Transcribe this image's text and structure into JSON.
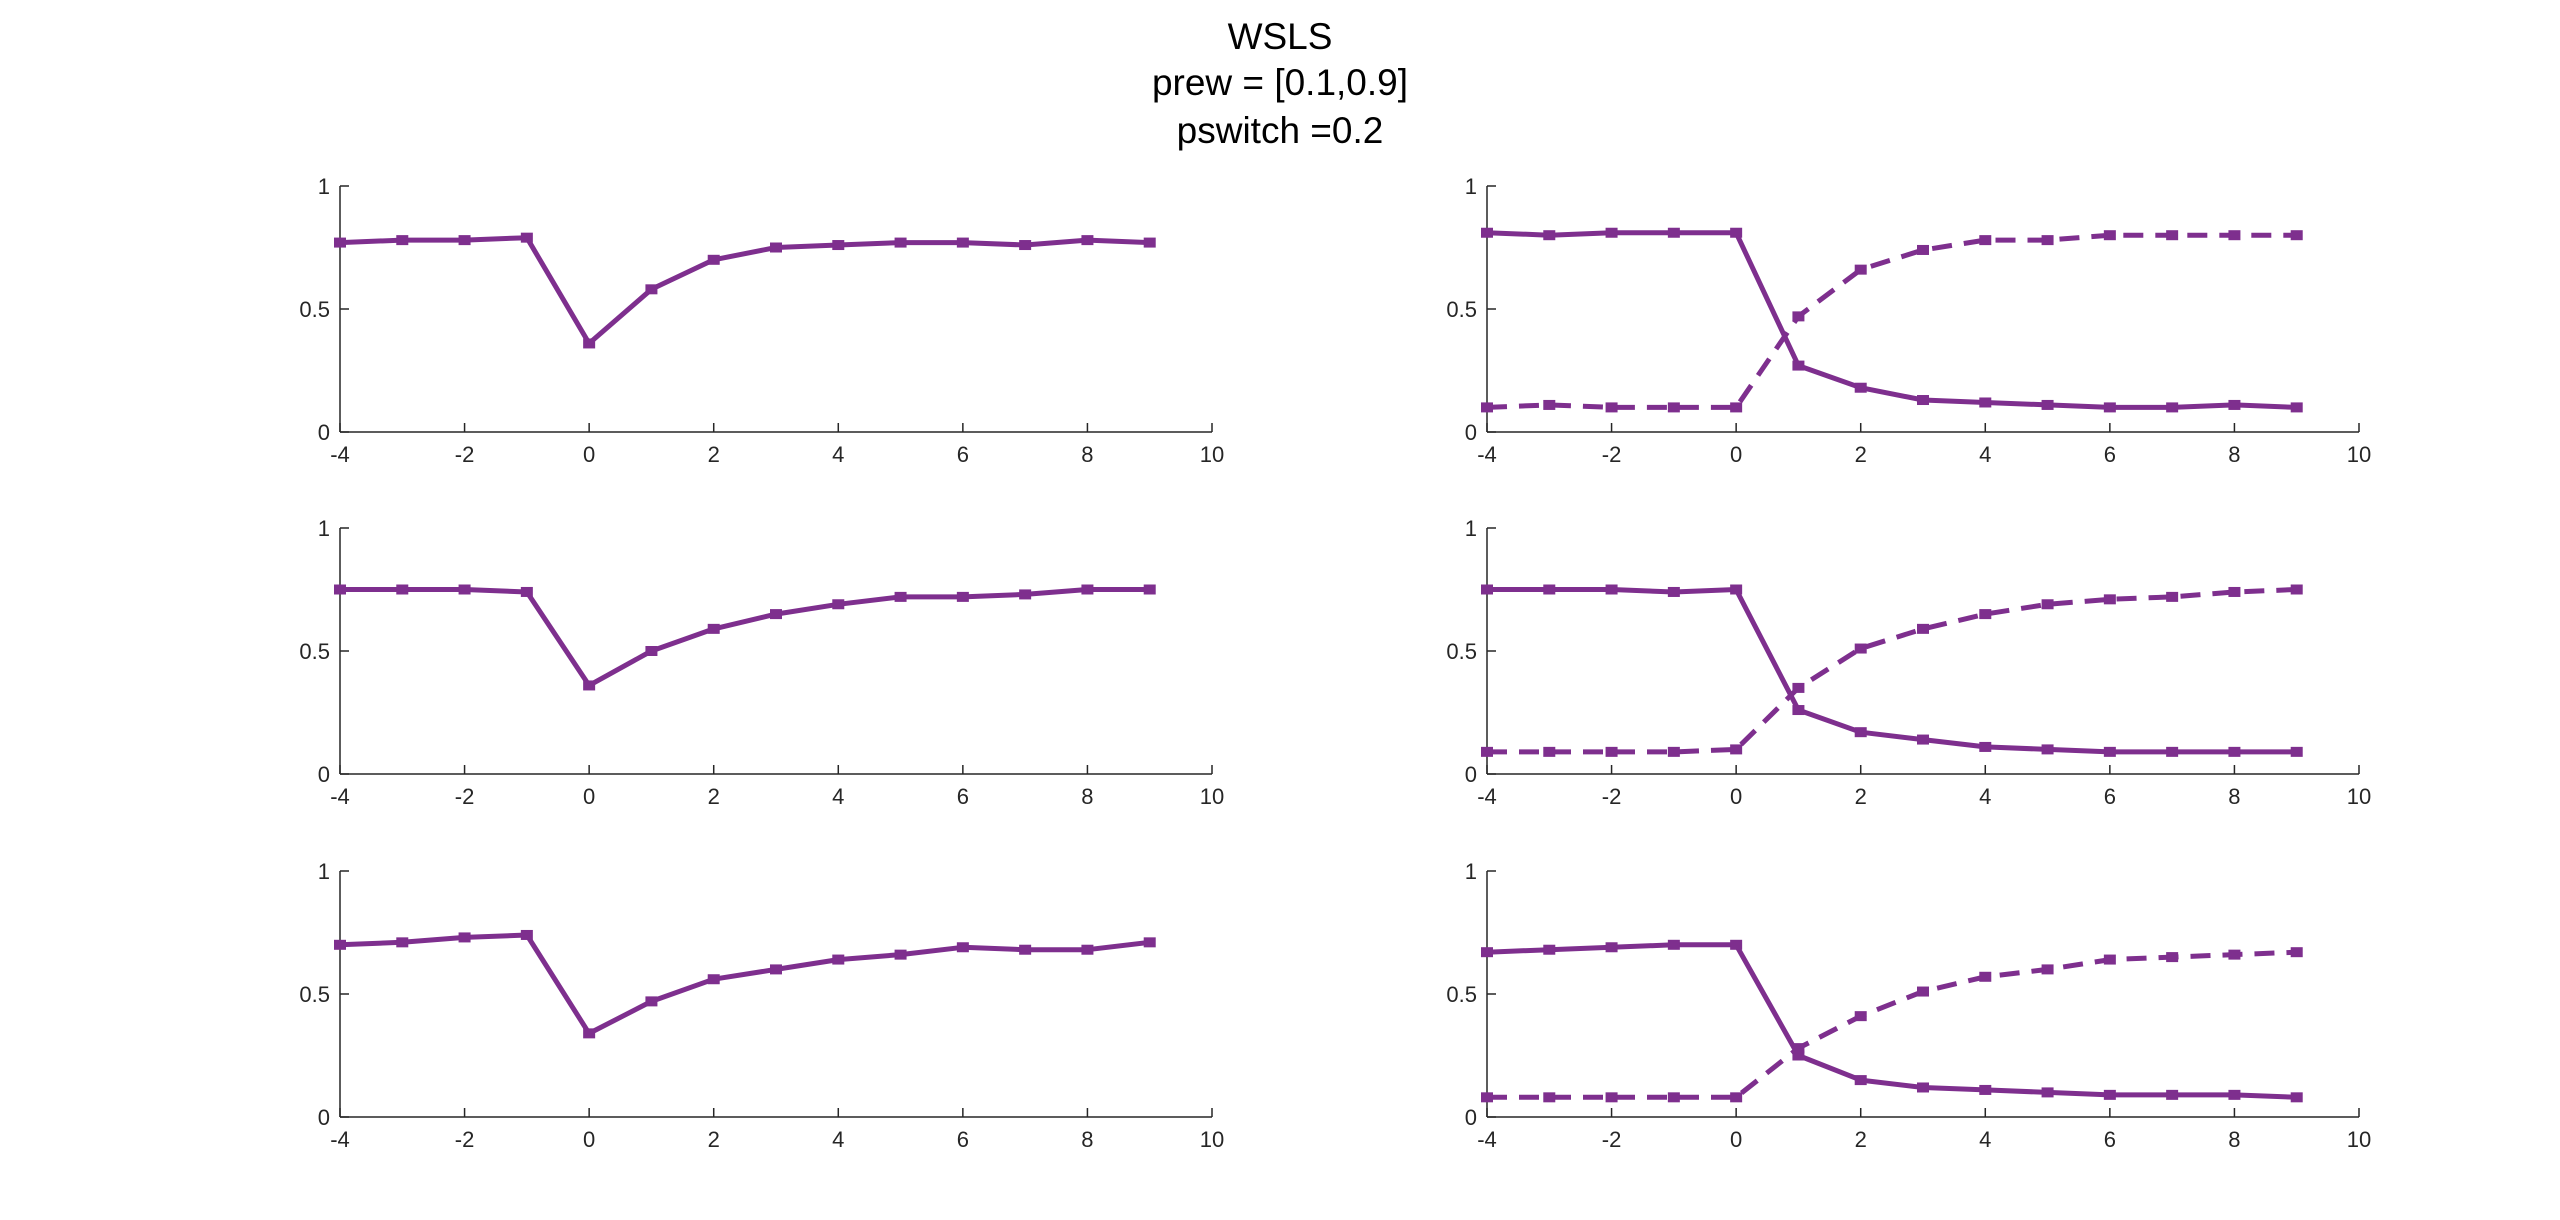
{
  "title": {
    "line1": "WSLS",
    "line2": "prew = [0.1,0.9]",
    "line3": "pswitch =0.2"
  },
  "colors": {
    "series": "#7E2F8E",
    "axis": "#262626"
  },
  "chart_data": [
    {
      "type": "line",
      "position": "row1-left",
      "xlim": [
        -4,
        10
      ],
      "ylim": [
        0,
        1
      ],
      "xticks": [
        "-4",
        "-2",
        "0",
        "2",
        "4",
        "6",
        "8",
        "10"
      ],
      "yticks": [
        "0",
        "0.5",
        "1"
      ],
      "x": [
        -4,
        -3,
        -2,
        -1,
        0,
        1,
        2,
        3,
        4,
        5,
        6,
        7,
        8,
        9
      ],
      "series": [
        {
          "style": "solid",
          "values": [
            0.77,
            0.78,
            0.78,
            0.79,
            0.36,
            0.58,
            0.7,
            0.75,
            0.76,
            0.77,
            0.77,
            0.76,
            0.78,
            0.77
          ]
        }
      ]
    },
    {
      "type": "line",
      "position": "row1-right",
      "xlim": [
        -4,
        10
      ],
      "ylim": [
        0,
        1
      ],
      "xticks": [
        "-4",
        "-2",
        "0",
        "2",
        "4",
        "6",
        "8",
        "10"
      ],
      "yticks": [
        "0",
        "0.5",
        "1"
      ],
      "x": [
        -4,
        -3,
        -2,
        -1,
        0,
        1,
        2,
        3,
        4,
        5,
        6,
        7,
        8,
        9
      ],
      "series": [
        {
          "style": "solid",
          "values": [
            0.81,
            0.8,
            0.81,
            0.81,
            0.81,
            0.27,
            0.18,
            0.13,
            0.12,
            0.11,
            0.1,
            0.1,
            0.11,
            0.1
          ]
        },
        {
          "style": "dashed",
          "values": [
            0.1,
            0.11,
            0.1,
            0.1,
            0.1,
            0.47,
            0.66,
            0.74,
            0.78,
            0.78,
            0.8,
            0.8,
            0.8,
            0.8
          ]
        }
      ]
    },
    {
      "type": "line",
      "position": "row2-left",
      "xlim": [
        -4,
        10
      ],
      "ylim": [
        0,
        1
      ],
      "xticks": [
        "-4",
        "-2",
        "0",
        "2",
        "4",
        "6",
        "8",
        "10"
      ],
      "yticks": [
        "0",
        "0.5",
        "1"
      ],
      "x": [
        -4,
        -3,
        -2,
        -1,
        0,
        1,
        2,
        3,
        4,
        5,
        6,
        7,
        8,
        9
      ],
      "series": [
        {
          "style": "solid",
          "values": [
            0.75,
            0.75,
            0.75,
            0.74,
            0.36,
            0.5,
            0.59,
            0.65,
            0.69,
            0.72,
            0.72,
            0.73,
            0.75,
            0.75
          ]
        }
      ]
    },
    {
      "type": "line",
      "position": "row2-right",
      "xlim": [
        -4,
        10
      ],
      "ylim": [
        0,
        1
      ],
      "xticks": [
        "-4",
        "-2",
        "0",
        "2",
        "4",
        "6",
        "8",
        "10"
      ],
      "yticks": [
        "0",
        "0.5",
        "1"
      ],
      "x": [
        -4,
        -3,
        -2,
        -1,
        0,
        1,
        2,
        3,
        4,
        5,
        6,
        7,
        8,
        9
      ],
      "series": [
        {
          "style": "solid",
          "values": [
            0.75,
            0.75,
            0.75,
            0.74,
            0.75,
            0.26,
            0.17,
            0.14,
            0.11,
            0.1,
            0.09,
            0.09,
            0.09,
            0.09
          ]
        },
        {
          "style": "dashed",
          "values": [
            0.09,
            0.09,
            0.09,
            0.09,
            0.1,
            0.35,
            0.51,
            0.59,
            0.65,
            0.69,
            0.71,
            0.72,
            0.74,
            0.75
          ]
        }
      ]
    },
    {
      "type": "line",
      "position": "row3-left",
      "xlim": [
        -4,
        10
      ],
      "ylim": [
        0,
        1
      ],
      "xticks": [
        "-4",
        "-2",
        "0",
        "2",
        "4",
        "6",
        "8",
        "10"
      ],
      "yticks": [
        "0",
        "0.5",
        "1"
      ],
      "x": [
        -4,
        -3,
        -2,
        -1,
        0,
        1,
        2,
        3,
        4,
        5,
        6,
        7,
        8,
        9
      ],
      "series": [
        {
          "style": "solid",
          "values": [
            0.7,
            0.71,
            0.73,
            0.74,
            0.34,
            0.47,
            0.56,
            0.6,
            0.64,
            0.66,
            0.69,
            0.68,
            0.68,
            0.71
          ]
        }
      ]
    },
    {
      "type": "line",
      "position": "row3-right",
      "xlim": [
        -4,
        10
      ],
      "ylim": [
        0,
        1
      ],
      "xticks": [
        "-4",
        "-2",
        "0",
        "2",
        "4",
        "6",
        "8",
        "10"
      ],
      "yticks": [
        "0",
        "0.5",
        "1"
      ],
      "x": [
        -4,
        -3,
        -2,
        -1,
        0,
        1,
        2,
        3,
        4,
        5,
        6,
        7,
        8,
        9
      ],
      "series": [
        {
          "style": "solid",
          "values": [
            0.67,
            0.68,
            0.69,
            0.7,
            0.7,
            0.25,
            0.15,
            0.12,
            0.11,
            0.1,
            0.09,
            0.09,
            0.09,
            0.08
          ]
        },
        {
          "style": "dashed",
          "values": [
            0.08,
            0.08,
            0.08,
            0.08,
            0.08,
            0.28,
            0.41,
            0.51,
            0.57,
            0.6,
            0.64,
            0.65,
            0.66,
            0.67
          ]
        }
      ]
    }
  ]
}
